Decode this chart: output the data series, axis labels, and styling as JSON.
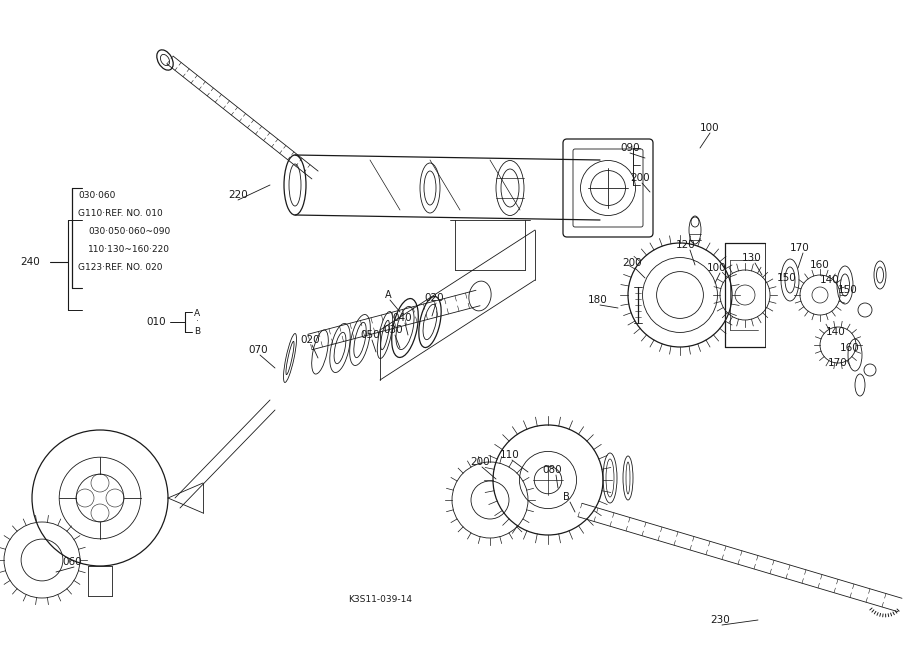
{
  "background_color": "#f5f5f0",
  "line_color": "#1a1a1a",
  "figsize": [
    9.19,
    6.68
  ],
  "dpi": 100,
  "diagram_code": "K3S11-039-14",
  "note_lines": [
    "030·060",
    "G110·REF. NO. 010",
    "030·050·060~090",
    "110·130~160·220",
    "G123·REF. NO. 020"
  ]
}
